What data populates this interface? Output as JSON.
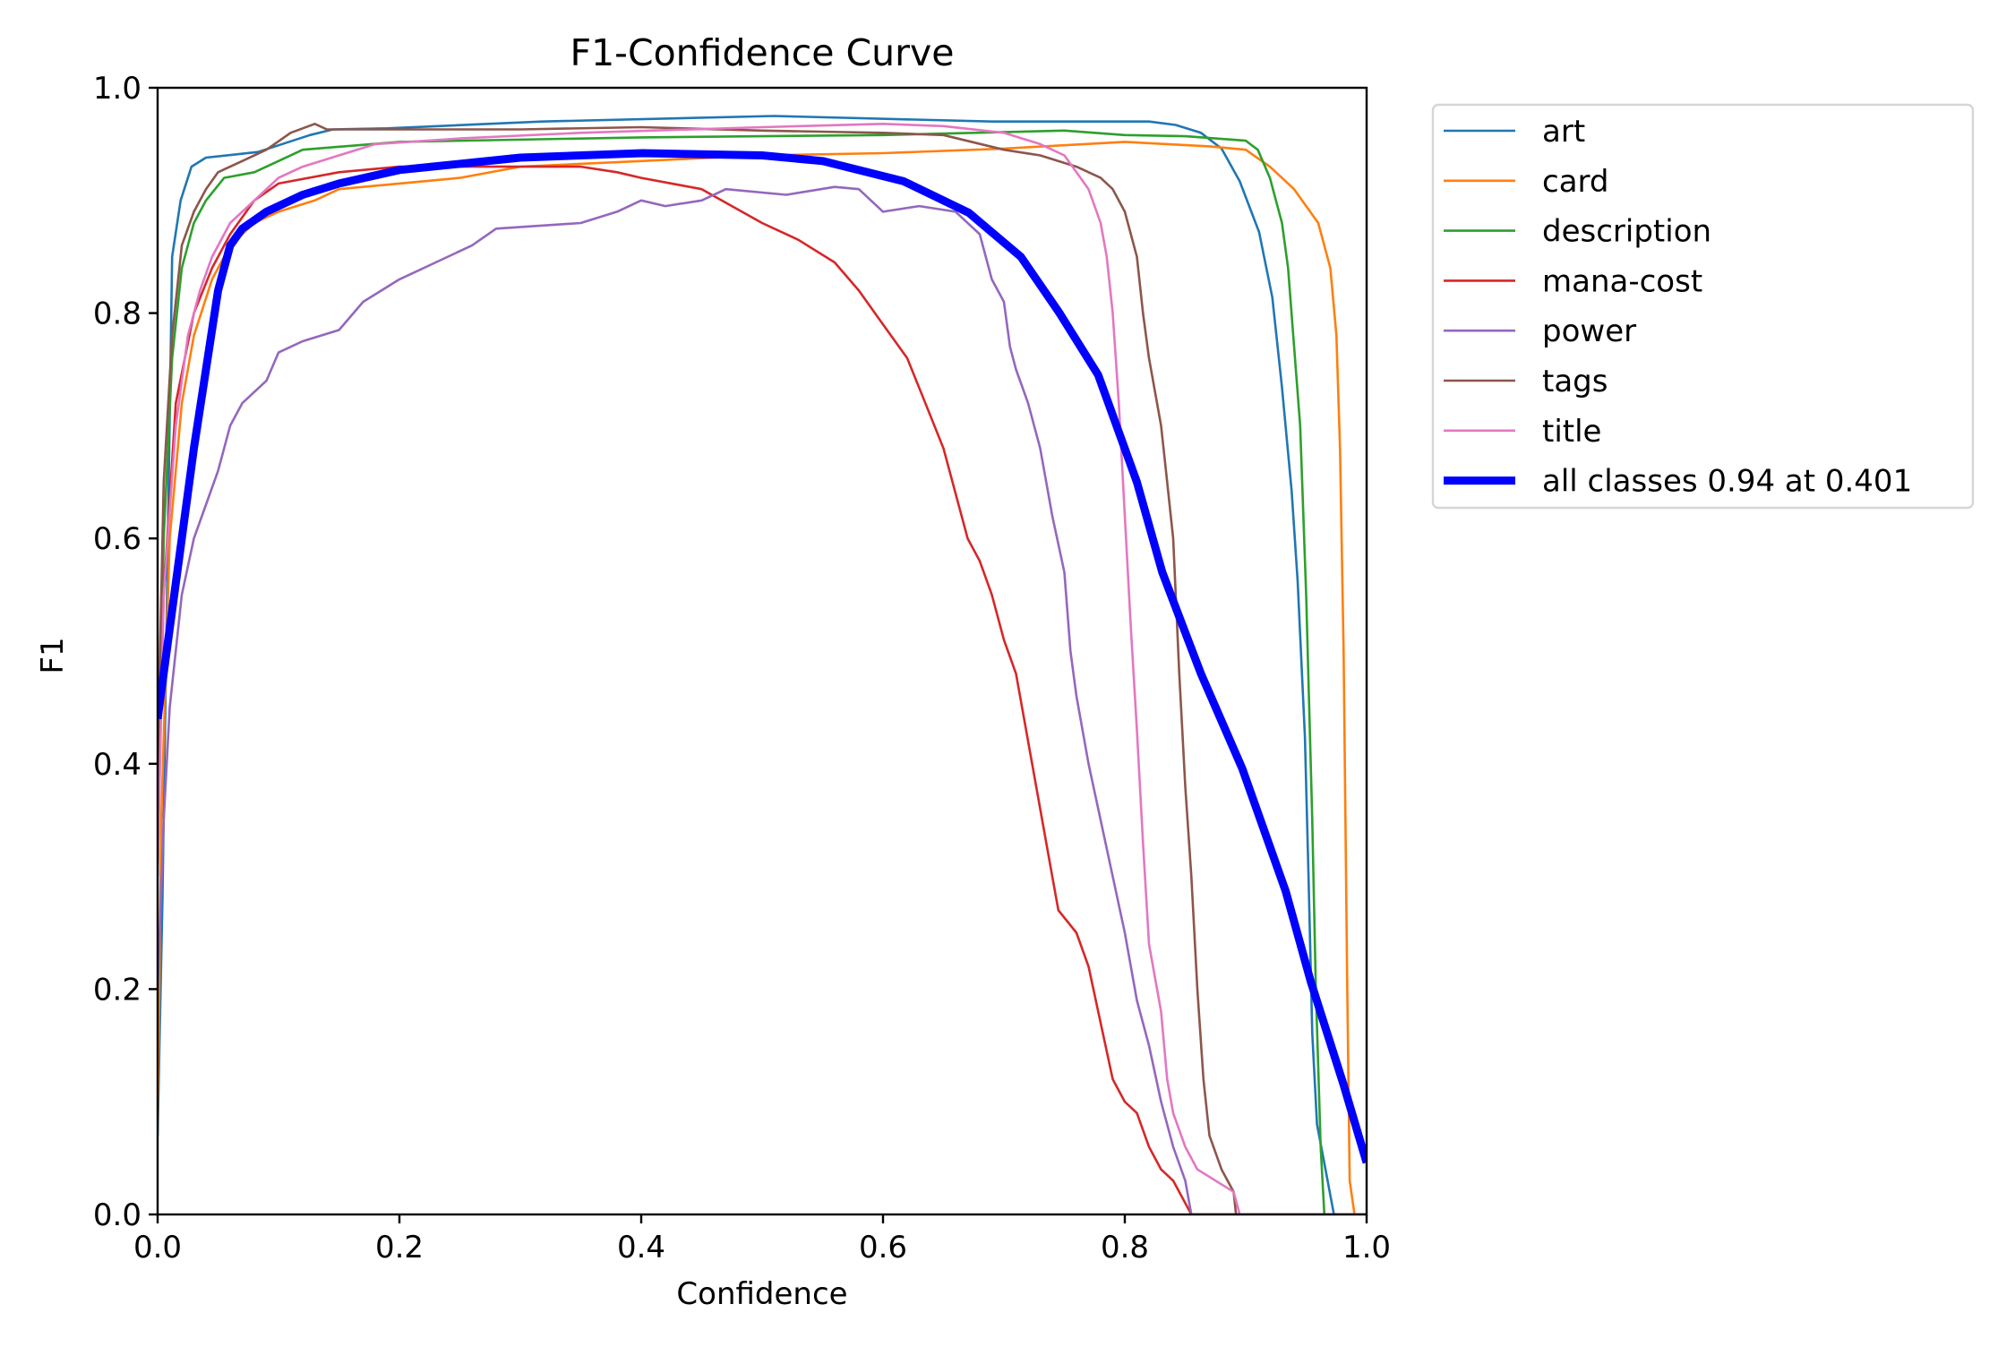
{
  "chart_data": {
    "type": "line",
    "title": "F1-Confidence Curve",
    "xlabel": "Confidence",
    "ylabel": "F1",
    "xlim": [
      0,
      1
    ],
    "ylim": [
      0,
      1
    ],
    "xticks": [
      "0.0",
      "0.2",
      "0.4",
      "0.6",
      "0.8",
      "1.0"
    ],
    "yticks": [
      "0.0",
      "0.2",
      "0.4",
      "0.6",
      "0.8",
      "1.0"
    ],
    "grid": false,
    "legend_placement": "outside-right-top",
    "series": [
      {
        "name": "art",
        "color": "#1f77b4",
        "points": [
          [
            0,
            0.07
          ],
          [
            0.004,
            0.28
          ],
          [
            0.012,
            0.85
          ],
          [
            0.019,
            0.9
          ],
          [
            0.028,
            0.93
          ],
          [
            0.04,
            0.938
          ],
          [
            0.083,
            0.943
          ],
          [
            0.126,
            0.958
          ],
          [
            0.145,
            0.963
          ],
          [
            0.19,
            0.964
          ],
          [
            0.318,
            0.97
          ],
          [
            0.51,
            0.975
          ],
          [
            0.69,
            0.97
          ],
          [
            0.82,
            0.97
          ],
          [
            0.842,
            0.967
          ],
          [
            0.863,
            0.96
          ],
          [
            0.88,
            0.946
          ],
          [
            0.895,
            0.917
          ],
          [
            0.911,
            0.872
          ],
          [
            0.922,
            0.814
          ],
          [
            0.93,
            0.734
          ],
          [
            0.938,
            0.642
          ],
          [
            0.943,
            0.562
          ],
          [
            0.949,
            0.424
          ],
          [
            0.952,
            0.298
          ],
          [
            0.955,
            0.161
          ],
          [
            0.959,
            0.08
          ],
          [
            0.967,
            0.034
          ],
          [
            0.973,
            0
          ],
          [
            1,
            0
          ]
        ]
      },
      {
        "name": "card",
        "color": "#ff7f0e",
        "points": [
          [
            0,
            0.08
          ],
          [
            0.003,
            0.35
          ],
          [
            0.01,
            0.6
          ],
          [
            0.02,
            0.72
          ],
          [
            0.03,
            0.78
          ],
          [
            0.045,
            0.83
          ],
          [
            0.06,
            0.86
          ],
          [
            0.08,
            0.88
          ],
          [
            0.1,
            0.89
          ],
          [
            0.13,
            0.9
          ],
          [
            0.15,
            0.91
          ],
          [
            0.2,
            0.915
          ],
          [
            0.25,
            0.92
          ],
          [
            0.3,
            0.93
          ],
          [
            0.4,
            0.935
          ],
          [
            0.5,
            0.94
          ],
          [
            0.6,
            0.942
          ],
          [
            0.7,
            0.946
          ],
          [
            0.8,
            0.952
          ],
          [
            0.87,
            0.948
          ],
          [
            0.9,
            0.945
          ],
          [
            0.92,
            0.93
          ],
          [
            0.94,
            0.91
          ],
          [
            0.96,
            0.88
          ],
          [
            0.97,
            0.84
          ],
          [
            0.975,
            0.78
          ],
          [
            0.978,
            0.68
          ],
          [
            0.981,
            0.5
          ],
          [
            0.984,
            0.2
          ],
          [
            0.986,
            0.03
          ],
          [
            0.99,
            0
          ],
          [
            1,
            0
          ]
        ]
      },
      {
        "name": "description",
        "color": "#2ca02c",
        "points": [
          [
            0,
            0.3
          ],
          [
            0.005,
            0.6
          ],
          [
            0.012,
            0.76
          ],
          [
            0.02,
            0.84
          ],
          [
            0.03,
            0.88
          ],
          [
            0.04,
            0.9
          ],
          [
            0.055,
            0.92
          ],
          [
            0.08,
            0.925
          ],
          [
            0.1,
            0.935
          ],
          [
            0.12,
            0.945
          ],
          [
            0.2,
            0.952
          ],
          [
            0.4,
            0.956
          ],
          [
            0.6,
            0.958
          ],
          [
            0.75,
            0.962
          ],
          [
            0.8,
            0.958
          ],
          [
            0.85,
            0.957
          ],
          [
            0.9,
            0.953
          ],
          [
            0.91,
            0.945
          ],
          [
            0.92,
            0.92
          ],
          [
            0.93,
            0.88
          ],
          [
            0.935,
            0.84
          ],
          [
            0.945,
            0.7
          ],
          [
            0.95,
            0.55
          ],
          [
            0.955,
            0.35
          ],
          [
            0.958,
            0.2
          ],
          [
            0.962,
            0.06
          ],
          [
            0.965,
            0
          ],
          [
            1,
            0
          ]
        ]
      },
      {
        "name": "mana-cost",
        "color": "#d62728",
        "points": [
          [
            0,
            0.35
          ],
          [
            0.005,
            0.55
          ],
          [
            0.015,
            0.72
          ],
          [
            0.03,
            0.8
          ],
          [
            0.045,
            0.84
          ],
          [
            0.06,
            0.87
          ],
          [
            0.08,
            0.9
          ],
          [
            0.1,
            0.915
          ],
          [
            0.15,
            0.925
          ],
          [
            0.2,
            0.93
          ],
          [
            0.3,
            0.93
          ],
          [
            0.35,
            0.93
          ],
          [
            0.38,
            0.925
          ],
          [
            0.4,
            0.92
          ],
          [
            0.45,
            0.91
          ],
          [
            0.5,
            0.88
          ],
          [
            0.53,
            0.865
          ],
          [
            0.56,
            0.845
          ],
          [
            0.58,
            0.82
          ],
          [
            0.6,
            0.79
          ],
          [
            0.62,
            0.76
          ],
          [
            0.635,
            0.72
          ],
          [
            0.65,
            0.68
          ],
          [
            0.66,
            0.64
          ],
          [
            0.67,
            0.6
          ],
          [
            0.68,
            0.58
          ],
          [
            0.69,
            0.55
          ],
          [
            0.7,
            0.51
          ],
          [
            0.71,
            0.48
          ],
          [
            0.72,
            0.42
          ],
          [
            0.73,
            0.36
          ],
          [
            0.74,
            0.3
          ],
          [
            0.745,
            0.27
          ],
          [
            0.76,
            0.25
          ],
          [
            0.77,
            0.22
          ],
          [
            0.78,
            0.17
          ],
          [
            0.79,
            0.12
          ],
          [
            0.8,
            0.1
          ],
          [
            0.81,
            0.09
          ],
          [
            0.82,
            0.06
          ],
          [
            0.83,
            0.04
          ],
          [
            0.84,
            0.03
          ],
          [
            0.85,
            0.01
          ],
          [
            0.855,
            0
          ],
          [
            1,
            0
          ]
        ]
      },
      {
        "name": "power",
        "color": "#9467bd",
        "points": [
          [
            0,
            0.2
          ],
          [
            0.005,
            0.35
          ],
          [
            0.01,
            0.45
          ],
          [
            0.02,
            0.55
          ],
          [
            0.03,
            0.6
          ],
          [
            0.04,
            0.63
          ],
          [
            0.05,
            0.66
          ],
          [
            0.06,
            0.7
          ],
          [
            0.07,
            0.72
          ],
          [
            0.09,
            0.74
          ],
          [
            0.1,
            0.765
          ],
          [
            0.12,
            0.775
          ],
          [
            0.15,
            0.785
          ],
          [
            0.17,
            0.81
          ],
          [
            0.2,
            0.83
          ],
          [
            0.23,
            0.845
          ],
          [
            0.26,
            0.86
          ],
          [
            0.28,
            0.875
          ],
          [
            0.35,
            0.88
          ],
          [
            0.38,
            0.89
          ],
          [
            0.4,
            0.9
          ],
          [
            0.42,
            0.895
          ],
          [
            0.45,
            0.9
          ],
          [
            0.47,
            0.91
          ],
          [
            0.52,
            0.905
          ],
          [
            0.56,
            0.912
          ],
          [
            0.58,
            0.91
          ],
          [
            0.6,
            0.89
          ],
          [
            0.63,
            0.895
          ],
          [
            0.66,
            0.89
          ],
          [
            0.68,
            0.87
          ],
          [
            0.69,
            0.83
          ],
          [
            0.7,
            0.81
          ],
          [
            0.705,
            0.77
          ],
          [
            0.71,
            0.75
          ],
          [
            0.72,
            0.72
          ],
          [
            0.73,
            0.68
          ],
          [
            0.74,
            0.62
          ],
          [
            0.75,
            0.57
          ],
          [
            0.755,
            0.5
          ],
          [
            0.76,
            0.46
          ],
          [
            0.77,
            0.4
          ],
          [
            0.78,
            0.35
          ],
          [
            0.79,
            0.3
          ],
          [
            0.8,
            0.25
          ],
          [
            0.81,
            0.19
          ],
          [
            0.82,
            0.15
          ],
          [
            0.83,
            0.1
          ],
          [
            0.84,
            0.06
          ],
          [
            0.85,
            0.03
          ],
          [
            0.855,
            0
          ],
          [
            1,
            0
          ]
        ]
      },
      {
        "name": "tags",
        "color": "#8c564b",
        "points": [
          [
            0,
            0.4
          ],
          [
            0.005,
            0.65
          ],
          [
            0.012,
            0.78
          ],
          [
            0.02,
            0.86
          ],
          [
            0.03,
            0.89
          ],
          [
            0.04,
            0.91
          ],
          [
            0.05,
            0.925
          ],
          [
            0.07,
            0.935
          ],
          [
            0.09,
            0.945
          ],
          [
            0.11,
            0.96
          ],
          [
            0.13,
            0.968
          ],
          [
            0.14,
            0.963
          ],
          [
            0.3,
            0.963
          ],
          [
            0.4,
            0.965
          ],
          [
            0.5,
            0.962
          ],
          [
            0.6,
            0.96
          ],
          [
            0.65,
            0.958
          ],
          [
            0.7,
            0.945
          ],
          [
            0.73,
            0.94
          ],
          [
            0.76,
            0.93
          ],
          [
            0.78,
            0.92
          ],
          [
            0.79,
            0.91
          ],
          [
            0.8,
            0.89
          ],
          [
            0.81,
            0.85
          ],
          [
            0.815,
            0.8
          ],
          [
            0.82,
            0.76
          ],
          [
            0.83,
            0.7
          ],
          [
            0.835,
            0.65
          ],
          [
            0.84,
            0.6
          ],
          [
            0.845,
            0.48
          ],
          [
            0.85,
            0.38
          ],
          [
            0.855,
            0.3
          ],
          [
            0.86,
            0.2
          ],
          [
            0.865,
            0.12
          ],
          [
            0.87,
            0.07
          ],
          [
            0.88,
            0.04
          ],
          [
            0.89,
            0.02
          ],
          [
            0.892,
            0
          ],
          [
            1,
            0
          ]
        ]
      },
      {
        "name": "title",
        "color": "#e377c2",
        "points": [
          [
            0,
            0.3
          ],
          [
            0.005,
            0.55
          ],
          [
            0.015,
            0.7
          ],
          [
            0.025,
            0.78
          ],
          [
            0.035,
            0.82
          ],
          [
            0.045,
            0.85
          ],
          [
            0.06,
            0.88
          ],
          [
            0.08,
            0.9
          ],
          [
            0.1,
            0.92
          ],
          [
            0.12,
            0.93
          ],
          [
            0.15,
            0.94
          ],
          [
            0.18,
            0.95
          ],
          [
            0.25,
            0.955
          ],
          [
            0.35,
            0.96
          ],
          [
            0.5,
            0.965
          ],
          [
            0.6,
            0.968
          ],
          [
            0.65,
            0.966
          ],
          [
            0.7,
            0.96
          ],
          [
            0.73,
            0.95
          ],
          [
            0.75,
            0.94
          ],
          [
            0.76,
            0.925
          ],
          [
            0.77,
            0.91
          ],
          [
            0.78,
            0.88
          ],
          [
            0.785,
            0.85
          ],
          [
            0.79,
            0.8
          ],
          [
            0.795,
            0.72
          ],
          [
            0.8,
            0.62
          ],
          [
            0.805,
            0.52
          ],
          [
            0.81,
            0.43
          ],
          [
            0.815,
            0.33
          ],
          [
            0.82,
            0.24
          ],
          [
            0.83,
            0.18
          ],
          [
            0.835,
            0.12
          ],
          [
            0.84,
            0.09
          ],
          [
            0.85,
            0.06
          ],
          [
            0.86,
            0.04
          ],
          [
            0.89,
            0.02
          ],
          [
            0.895,
            0
          ],
          [
            1,
            0
          ]
        ]
      },
      {
        "name": "all classes 0.94 at 0.401",
        "color": "#0000ff",
        "bold": true,
        "points": [
          [
            0,
            0.44
          ],
          [
            0.01,
            0.52
          ],
          [
            0.02,
            0.6
          ],
          [
            0.03,
            0.68
          ],
          [
            0.04,
            0.75
          ],
          [
            0.05,
            0.82
          ],
          [
            0.06,
            0.86
          ],
          [
            0.07,
            0.875
          ],
          [
            0.09,
            0.89
          ],
          [
            0.12,
            0.905
          ],
          [
            0.15,
            0.915
          ],
          [
            0.2,
            0.927
          ],
          [
            0.3,
            0.938
          ],
          [
            0.401,
            0.942
          ],
          [
            0.5,
            0.94
          ],
          [
            0.55,
            0.935
          ],
          [
            0.617,
            0.917
          ],
          [
            0.671,
            0.889
          ],
          [
            0.714,
            0.85
          ],
          [
            0.746,
            0.8
          ],
          [
            0.778,
            0.745
          ],
          [
            0.81,
            0.65
          ],
          [
            0.831,
            0.57
          ],
          [
            0.863,
            0.48
          ],
          [
            0.897,
            0.396
          ],
          [
            0.933,
            0.287
          ],
          [
            0.954,
            0.206
          ],
          [
            0.981,
            0.115
          ],
          [
            1,
            0.046
          ]
        ]
      }
    ]
  }
}
